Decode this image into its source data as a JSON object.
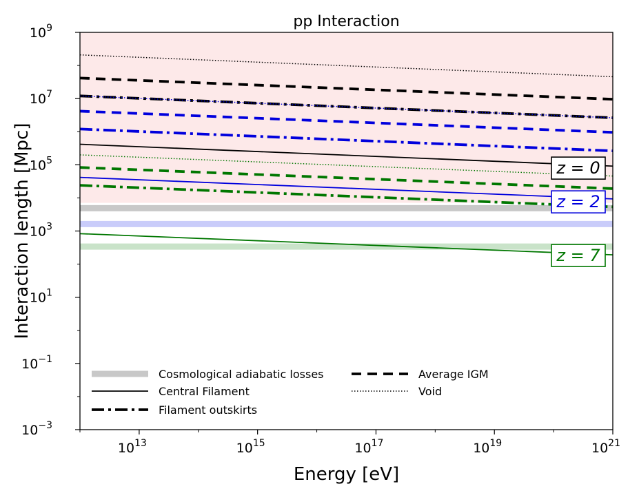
{
  "chart_data": {
    "type": "line",
    "title": "pp Interaction",
    "xlabel": "Energy [eV]",
    "ylabel": "Interaction length [Mpc]",
    "xscale": "log",
    "yscale": "log",
    "xlim_log10": [
      12,
      21
    ],
    "ylim_log10": [
      -3,
      9
    ],
    "x_ticks": [
      {
        "exp": 13,
        "base": "10",
        "sup": "13"
      },
      {
        "exp": 15,
        "base": "10",
        "sup": "15"
      },
      {
        "exp": 17,
        "base": "10",
        "sup": "17"
      },
      {
        "exp": 19,
        "base": "10",
        "sup": "19"
      },
      {
        "exp": 21,
        "base": "10",
        "sup": "21"
      }
    ],
    "y_ticks": [
      {
        "exp": 9,
        "base": "10",
        "sup": "9"
      },
      {
        "exp": 7,
        "base": "10",
        "sup": "7"
      },
      {
        "exp": 5,
        "base": "10",
        "sup": "5"
      },
      {
        "exp": 3,
        "base": "10",
        "sup": "3"
      },
      {
        "exp": 1,
        "base": "10",
        "sup": "1"
      },
      {
        "exp": -1,
        "base": "10",
        "sup": "−1"
      },
      {
        "exp": -3,
        "base": "10",
        "sup": "−3"
      }
    ],
    "shaded_region": {
      "ymin_log10": 3.85,
      "ymax_log10": 9,
      "color": "#fde9e9"
    },
    "adiabatic_bands": [
      {
        "redshift": "z = 0",
        "log10_center": 3.69,
        "color": "#c8c8c8"
      },
      {
        "redshift": "z = 2",
        "log10_center": 3.21,
        "color": "#c9ccfa"
      },
      {
        "redshift": "z = 7",
        "log10_center": 2.53,
        "color": "#c9e3c9"
      }
    ],
    "series": [
      {
        "name": "Void",
        "redshift": "z = 0",
        "style": "void",
        "color": "#000000",
        "x_log10": [
          12,
          21
        ],
        "y_log10": [
          8.32,
          7.66
        ]
      },
      {
        "name": "Average IGM",
        "redshift": "z = 0",
        "style": "average",
        "color": "#000000",
        "x_log10": [
          12,
          21
        ],
        "y_log10": [
          7.62,
          6.98
        ]
      },
      {
        "name": "Filament outskirts",
        "redshift": "z = 0",
        "style": "outskirts",
        "color": "#000000",
        "x_log10": [
          12,
          21
        ],
        "y_log10": [
          7.08,
          6.42
        ]
      },
      {
        "name": "Central Filament",
        "redshift": "z = 0",
        "style": "central",
        "color": "#000000",
        "x_log10": [
          12,
          21
        ],
        "y_log10": [
          5.62,
          4.96
        ]
      },
      {
        "name": "Void",
        "redshift": "z = 2",
        "style": "void",
        "color": "#0000dd",
        "x_log10": [
          12,
          21
        ],
        "y_log10": [
          7.08,
          6.42
        ]
      },
      {
        "name": "Average IGM",
        "redshift": "z = 2",
        "style": "average",
        "color": "#0000dd",
        "x_log10": [
          12,
          21
        ],
        "y_log10": [
          6.62,
          5.98
        ]
      },
      {
        "name": "Filament outskirts",
        "redshift": "z = 2",
        "style": "outskirts",
        "color": "#0000dd",
        "x_log10": [
          12,
          21
        ],
        "y_log10": [
          6.08,
          5.42
        ]
      },
      {
        "name": "Central Filament",
        "redshift": "z = 2",
        "style": "central",
        "color": "#0000dd",
        "x_log10": [
          12,
          21
        ],
        "y_log10": [
          4.62,
          3.97
        ]
      },
      {
        "name": "Void",
        "redshift": "z = 7",
        "style": "void",
        "color": "#007700",
        "x_log10": [
          12,
          21
        ],
        "y_log10": [
          5.3,
          4.66
        ]
      },
      {
        "name": "Average IGM",
        "redshift": "z = 7",
        "style": "average",
        "color": "#007700",
        "x_log10": [
          12,
          21
        ],
        "y_log10": [
          4.92,
          4.28
        ]
      },
      {
        "name": "Filament outskirts",
        "redshift": "z = 7",
        "style": "outskirts",
        "color": "#007700",
        "x_log10": [
          12,
          21
        ],
        "y_log10": [
          4.38,
          3.73
        ]
      },
      {
        "name": "Central Filament",
        "redshift": "z = 7",
        "style": "central",
        "color": "#007700",
        "x_log10": [
          12,
          21
        ],
        "y_log10": [
          2.92,
          2.28
        ]
      }
    ],
    "redshift_labels": [
      {
        "text": "z = 0",
        "color": "#000000",
        "log10_y": 4.9
      },
      {
        "text": "z = 2",
        "color": "#0000dd",
        "log10_y": 3.88
      },
      {
        "text": "z = 7",
        "color": "#007700",
        "log10_y": 2.26
      }
    ],
    "legend": {
      "placement": "lower-center",
      "entries": [
        {
          "label": "Cosmological adiabatic losses",
          "style": "band"
        },
        {
          "label": "Average IGM",
          "style": "average"
        },
        {
          "label": "Central Filament",
          "style": "central"
        },
        {
          "label": "Void",
          "style": "void"
        },
        {
          "label": "Filament outskirts",
          "style": "outskirts"
        }
      ]
    }
  }
}
